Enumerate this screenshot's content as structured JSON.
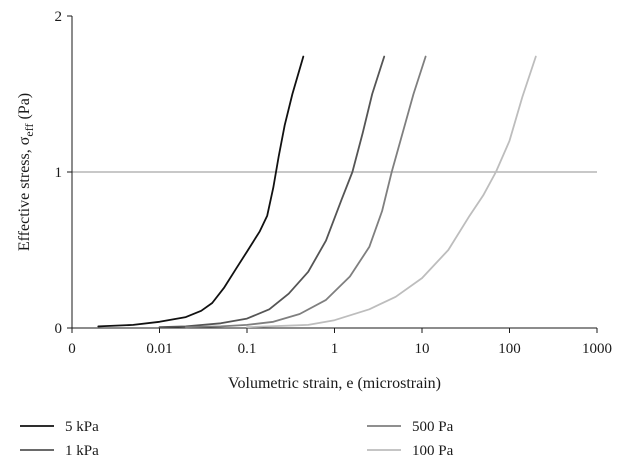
{
  "chart_data": {
    "type": "line",
    "title": "",
    "xlabel": "Volumetric strain, e (microstrain)",
    "ylabel_main": "Effective stress, σ",
    "ylabel_sub": "eff",
    "ylabel_unit": " (Pa)",
    "xscale": "log",
    "xlim": [
      0.001,
      1000
    ],
    "ylim": [
      0,
      2
    ],
    "x_ticks": [
      {
        "value": 0.001,
        "label": "0"
      },
      {
        "value": 0.01,
        "label": "0.01"
      },
      {
        "value": 0.1,
        "label": "0.1"
      },
      {
        "value": 1,
        "label": "1"
      },
      {
        "value": 10,
        "label": "10"
      },
      {
        "value": 100,
        "label": "100"
      },
      {
        "value": 1000,
        "label": "1000"
      }
    ],
    "y_ticks": [
      {
        "value": 0,
        "label": "0"
      },
      {
        "value": 1,
        "label": "1"
      },
      {
        "value": 2,
        "label": "2"
      }
    ],
    "reference_line": {
      "y": 1,
      "color": "#a6a6a6"
    },
    "grid": false,
    "legend_position": "bottom",
    "series": [
      {
        "name": "5 kPa",
        "color": "#111111",
        "points": [
          [
            0.002,
            0.01
          ],
          [
            0.005,
            0.02
          ],
          [
            0.01,
            0.04
          ],
          [
            0.02,
            0.07
          ],
          [
            0.03,
            0.11
          ],
          [
            0.04,
            0.16
          ],
          [
            0.055,
            0.26
          ],
          [
            0.075,
            0.38
          ],
          [
            0.1,
            0.49
          ],
          [
            0.14,
            0.62
          ],
          [
            0.17,
            0.72
          ],
          [
            0.2,
            0.9
          ],
          [
            0.23,
            1.1
          ],
          [
            0.27,
            1.3
          ],
          [
            0.33,
            1.5
          ],
          [
            0.44,
            1.74
          ]
        ]
      },
      {
        "name": "1 kPa",
        "color": "#555555",
        "points": [
          [
            0.01,
            0.005
          ],
          [
            0.02,
            0.01
          ],
          [
            0.05,
            0.03
          ],
          [
            0.1,
            0.06
          ],
          [
            0.18,
            0.12
          ],
          [
            0.3,
            0.22
          ],
          [
            0.5,
            0.36
          ],
          [
            0.8,
            0.56
          ],
          [
            1.2,
            0.82
          ],
          [
            1.6,
            1.0
          ],
          [
            2.1,
            1.25
          ],
          [
            2.7,
            1.5
          ],
          [
            3.7,
            1.74
          ]
        ]
      },
      {
        "name": "500 Pa",
        "color": "#7f7f7f",
        "points": [
          [
            0.02,
            0.005
          ],
          [
            0.05,
            0.01
          ],
          [
            0.1,
            0.02
          ],
          [
            0.2,
            0.04
          ],
          [
            0.4,
            0.09
          ],
          [
            0.8,
            0.18
          ],
          [
            1.5,
            0.33
          ],
          [
            2.5,
            0.52
          ],
          [
            3.5,
            0.75
          ],
          [
            4.5,
            1.0
          ],
          [
            6,
            1.25
          ],
          [
            8,
            1.5
          ],
          [
            11,
            1.74
          ]
        ]
      },
      {
        "name": "100 Pa",
        "color": "#bdbdbd",
        "points": [
          [
            0.1,
            0.005
          ],
          [
            0.5,
            0.02
          ],
          [
            1,
            0.05
          ],
          [
            2.5,
            0.12
          ],
          [
            5,
            0.2
          ],
          [
            10,
            0.32
          ],
          [
            20,
            0.5
          ],
          [
            35,
            0.72
          ],
          [
            50,
            0.85
          ],
          [
            70,
            1.0
          ],
          [
            100,
            1.2
          ],
          [
            140,
            1.48
          ],
          [
            200,
            1.74
          ]
        ]
      }
    ]
  }
}
